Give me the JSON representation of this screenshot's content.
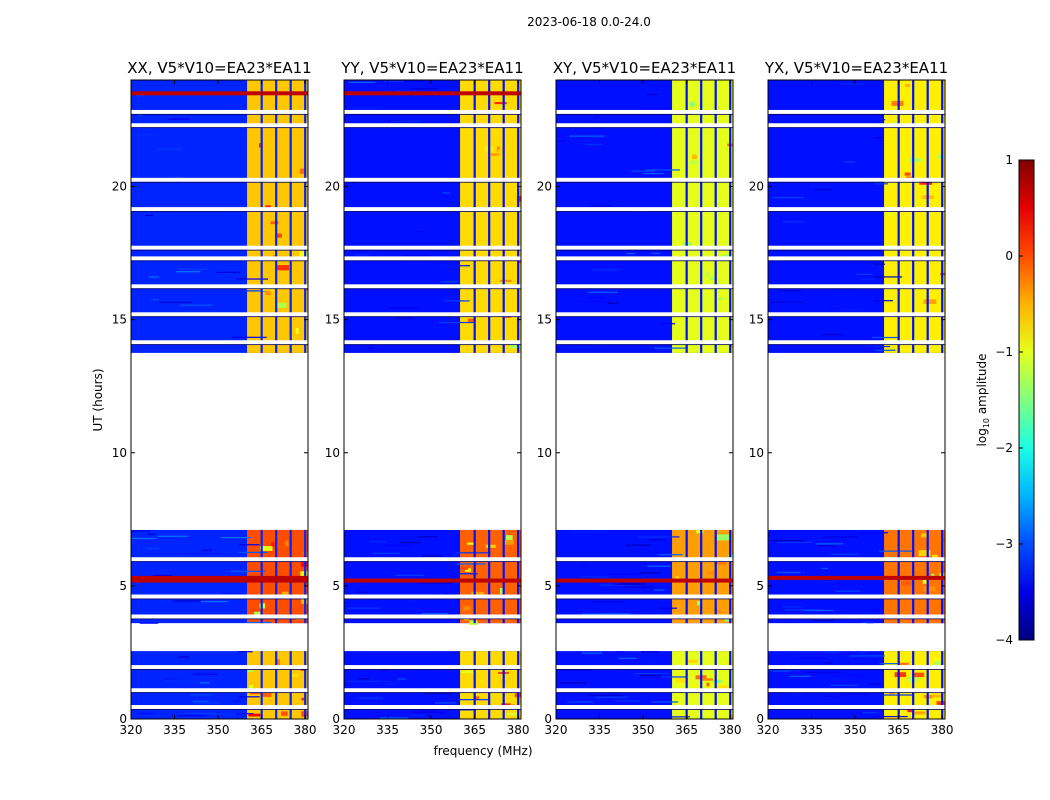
{
  "figure": {
    "suptitle": "2023-06-18 0.0-24.0",
    "xlabel": "frequency (MHz)",
    "ylabel": "UT (hours)",
    "colorbar_label_prefix": "log",
    "colorbar_label_sub": "10",
    "colorbar_label_suffix": " amplitude"
  },
  "chart_data": {
    "type": "heatmap",
    "x_label": "frequency (MHz)",
    "y_label": "UT (hours)",
    "xlim": [
      320,
      381
    ],
    "ylim": [
      0,
      24
    ],
    "x_ticks": [
      320,
      335,
      350,
      365,
      380
    ],
    "y_ticks": [
      0,
      5,
      10,
      15,
      20
    ],
    "colorbar": {
      "label": "log10 amplitude",
      "range": [
        -4,
        1
      ],
      "ticks": [
        1,
        0,
        -1,
        -2,
        -3,
        -4
      ],
      "tick_labels": [
        "1",
        "0",
        "−1",
        "−2",
        "−3",
        "−4"
      ],
      "colormap": "jet"
    },
    "observed_time_blocks_hours": [
      [
        0,
        2.55
      ],
      [
        3.6,
        7.1
      ],
      [
        13.75,
        24.0
      ]
    ],
    "flagged_time_rows_hours": [
      0.45,
      1.08,
      1.95,
      3.85,
      4.6,
      6.0,
      14.15,
      15.2,
      16.25,
      17.3,
      17.7,
      19.15,
      20.25,
      22.3,
      22.8
    ],
    "bright_frequency_band_mhz": [
      360,
      380
    ],
    "bright_band_notch_channels_mhz": [
      365,
      370,
      375,
      380
    ],
    "panels": [
      {
        "title": "XX, V5*V10=EA23*EA11",
        "band_log_amplitude": -0.6,
        "background_log_amplitude": -3.2,
        "bright_rows_hours": [
          5.2,
          5.3,
          23.5
        ]
      },
      {
        "title": "YY, V5*V10=EA23*EA11",
        "band_log_amplitude": -0.7,
        "background_log_amplitude": -3.3,
        "bright_rows_hours": [
          5.2,
          23.5
        ]
      },
      {
        "title": "XY, V5*V10=EA23*EA11",
        "band_log_amplitude": -1.0,
        "background_log_amplitude": -3.3,
        "bright_rows_hours": [
          5.2
        ]
      },
      {
        "title": "YX, V5*V10=EA23*EA11",
        "band_log_amplitude": -0.8,
        "background_log_amplitude": -3.3,
        "bright_rows_hours": [
          5.3
        ]
      }
    ]
  }
}
